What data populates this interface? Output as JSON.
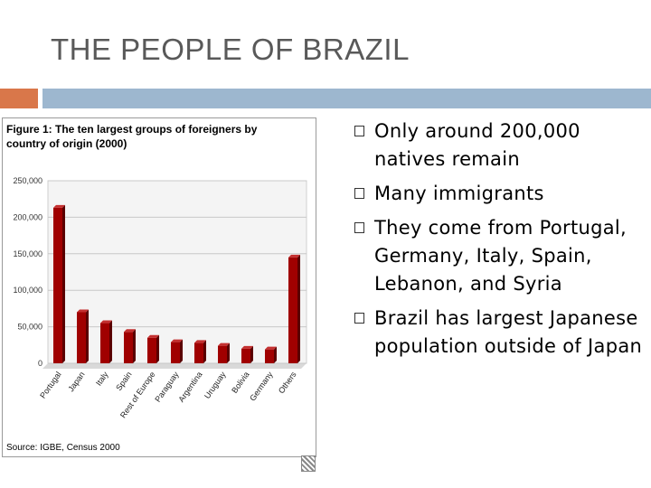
{
  "slide": {
    "title": "THE PEOPLE OF BRAZIL",
    "accent_color": "#d9774a",
    "band_color": "#9db7cf"
  },
  "figure": {
    "caption": "Figure 1: The ten largest groups of foreigners by country of origin (2000)",
    "source": "Source: IGBE, Census 2000"
  },
  "bullets": [
    "Only around 200,000 natives remain",
    "Many immigrants",
    "They come from Portugal, Germany, Italy, Spain, Lebanon, and Syria",
    "Brazil has largest Japanese population outside of Japan"
  ],
  "chart_data": {
    "type": "bar",
    "categories": [
      "Portugal",
      "Japan",
      "Italy",
      "Spain",
      "Rest of Europe",
      "Paraguay",
      "Argentina",
      "Uruguay",
      "Bolivia",
      "Germany",
      "Others"
    ],
    "values": [
      213000,
      70000,
      55000,
      43000,
      35000,
      29000,
      28000,
      24000,
      20000,
      19000,
      145000
    ],
    "yticks": [
      "0",
      "50,000",
      "100,000",
      "150,000",
      "200,000",
      "250,000"
    ],
    "ylim": [
      0,
      250000
    ],
    "bar_color": "#a00000",
    "grid": true
  }
}
